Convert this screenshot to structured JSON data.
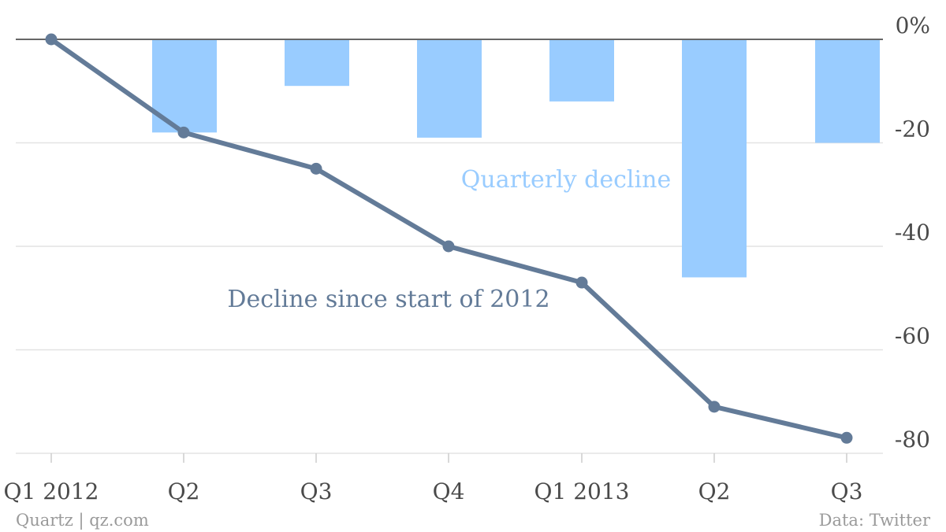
{
  "chart_data": {
    "type": "bar",
    "categories": [
      "Q1 2012",
      "Q2",
      "Q3",
      "Q4",
      "Q1 2013",
      "Q2",
      "Q3"
    ],
    "series": [
      {
        "type": "bar",
        "values": [
          0,
          -18,
          -9,
          -19,
          -12,
          -46,
          -20
        ],
        "color": "#99ccff"
      },
      {
        "type": "line",
        "values": [
          0,
          -18,
          -25,
          -40,
          -47,
          -71,
          -77
        ],
        "color": "#637b98"
      }
    ],
    "ylim": [
      -80,
      0
    ],
    "yticks": [
      {
        "value": 0,
        "label": "0%"
      },
      {
        "value": -20,
        "label": "-20"
      },
      {
        "value": -40,
        "label": "-40"
      },
      {
        "value": -60,
        "label": "-60"
      },
      {
        "value": -80,
        "label": "-80"
      }
    ],
    "annotations": {
      "bar_label": "Quarterly decline",
      "line_label": "Decline since start of 2012"
    },
    "grid": true,
    "y_axis_position": "right",
    "xlabel": "",
    "ylabel": ""
  },
  "footer": {
    "source_left": "Quartz | qz.com",
    "source_right": "Data: Twitter"
  }
}
